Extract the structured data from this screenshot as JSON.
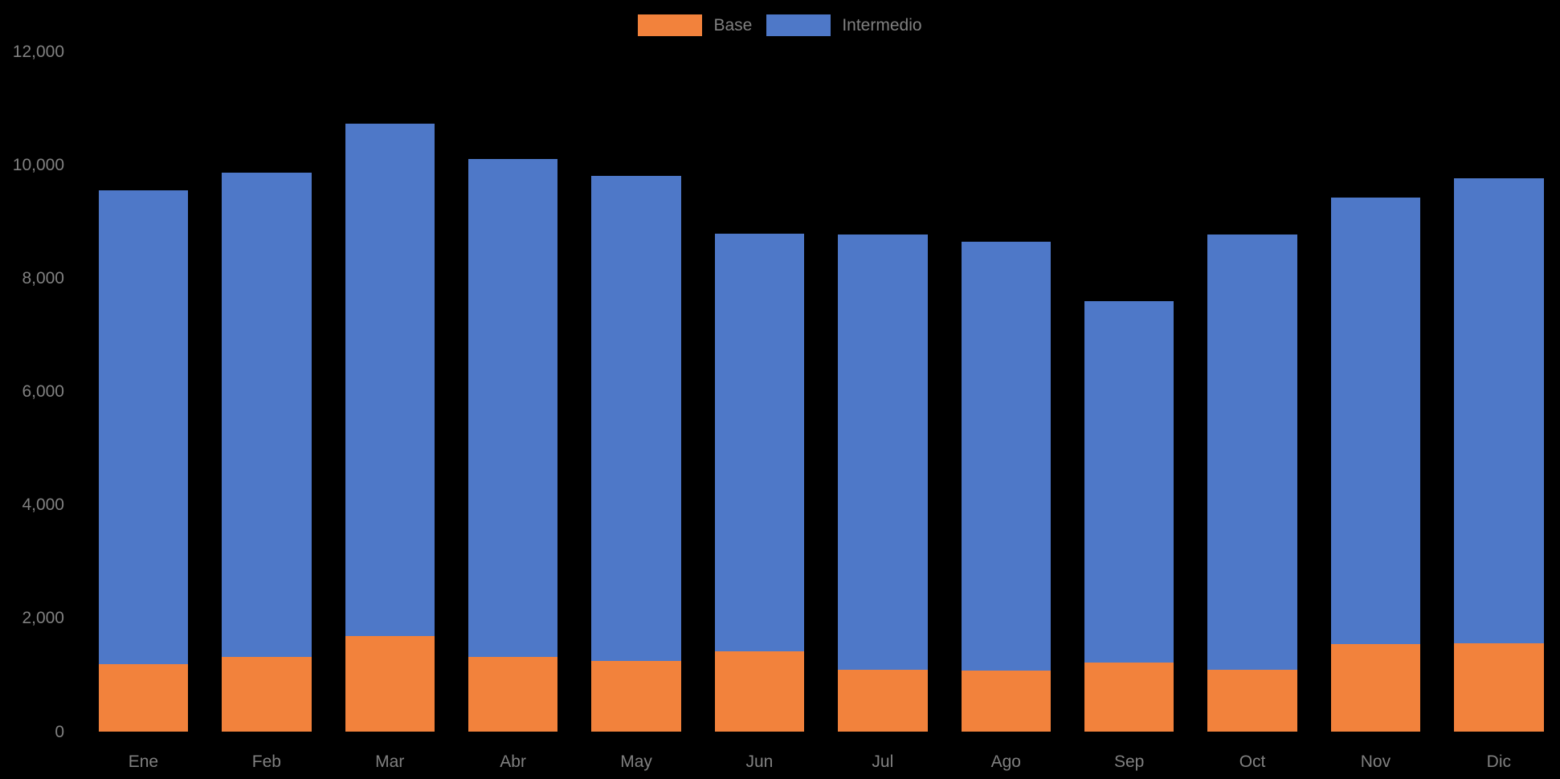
{
  "chart_data": {
    "type": "bar",
    "stacked": true,
    "title": "",
    "categories": [
      "Ene",
      "Feb",
      "Mar",
      "Abr",
      "May",
      "Jun",
      "Jul",
      "Ago",
      "Sep",
      "Oct",
      "Nov",
      "Dic"
    ],
    "series": [
      {
        "name": "Base",
        "color": "#F2823C",
        "values": [
          1200,
          1330,
          1700,
          1320,
          1250,
          1430,
          1100,
          1080,
          1230,
          1100,
          1550,
          1560
        ]
      },
      {
        "name": "Intermedio",
        "color": "#4E78C8",
        "values": [
          8360,
          8540,
          9040,
          8790,
          8570,
          7360,
          7680,
          7580,
          6370,
          7680,
          7880,
          8210
        ]
      }
    ],
    "totals": [
      9560,
      9870,
      10740,
      10110,
      9820,
      8790,
      8780,
      8660,
      7600,
      8780,
      9430,
      9770
    ],
    "xlabel": "",
    "ylabel": "",
    "ylim": [
      0,
      12000
    ],
    "yticks": [
      0,
      2000,
      4000,
      6000,
      8000,
      10000,
      12000
    ],
    "ytick_labels": [
      "0",
      "2,000",
      "4,000",
      "6,000",
      "8,000",
      "10,000",
      "12,000"
    ],
    "grid": false,
    "legend_position": "top-center",
    "colors": {
      "background": "#000000",
      "label_text": "#808080",
      "base_series": "#F2823C",
      "intermedio_series": "#4E78C8"
    }
  }
}
